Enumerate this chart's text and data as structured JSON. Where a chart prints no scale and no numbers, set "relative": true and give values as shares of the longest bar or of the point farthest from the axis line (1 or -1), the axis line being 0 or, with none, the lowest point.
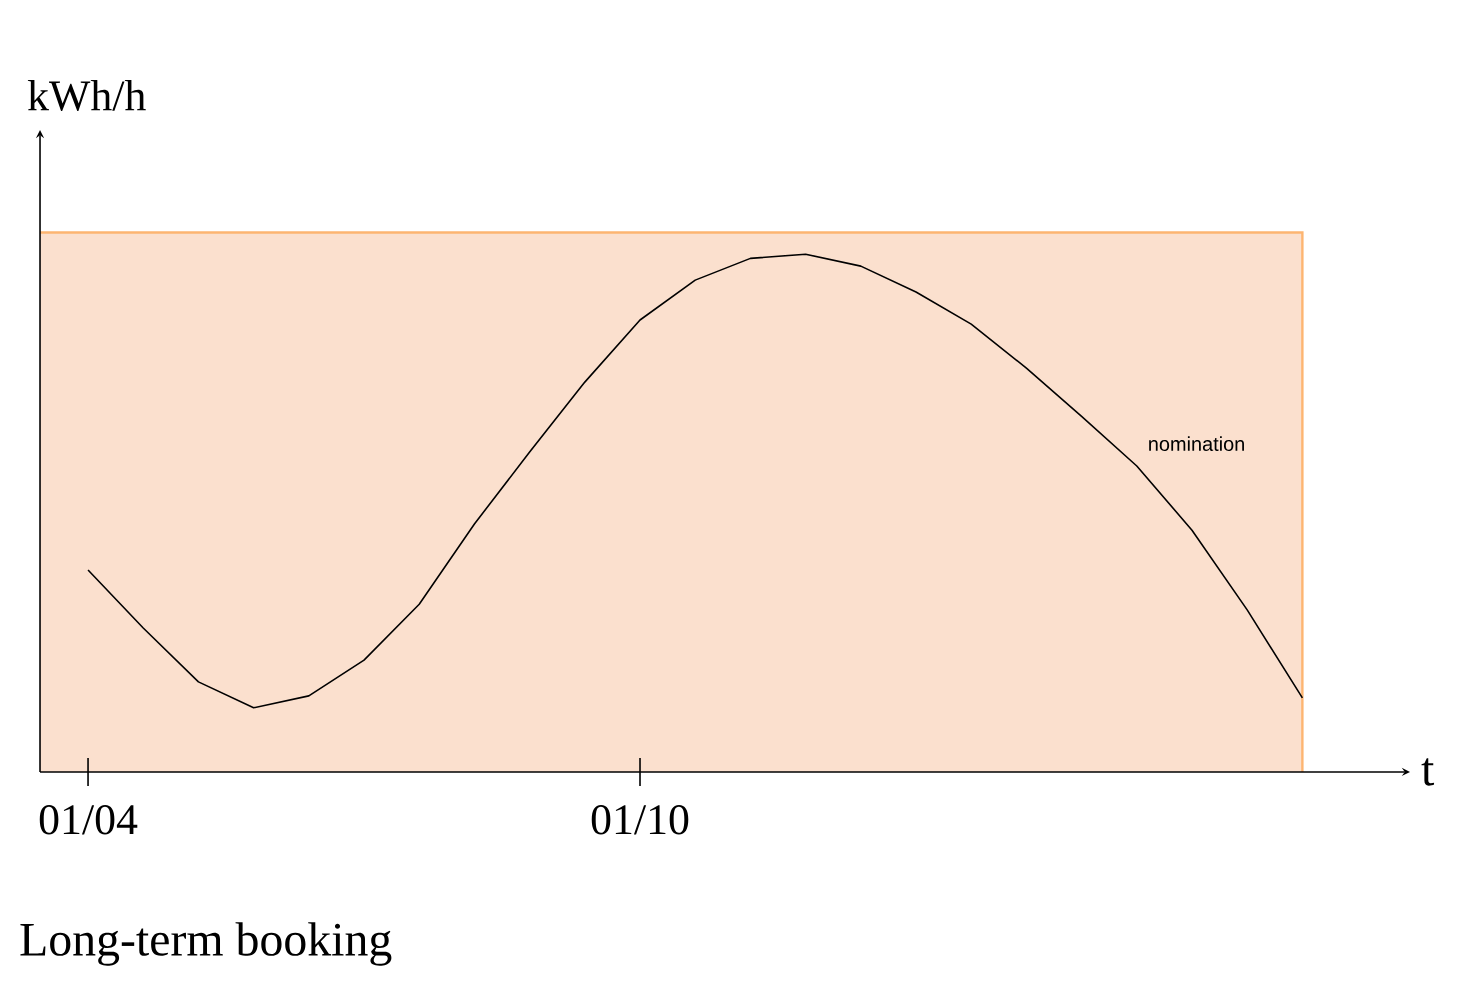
{
  "chart_data": {
    "type": "line",
    "relative": true,
    "xlabel": "t",
    "ylabel": "kWh/h",
    "categories": [
      "01/04",
      null,
      null,
      null,
      null,
      null,
      null,
      null,
      null,
      null,
      "01/10",
      null,
      null,
      null,
      null,
      null,
      null,
      null,
      null,
      null,
      null,
      null,
      null
    ],
    "annotations": [
      "Long-term booking"
    ],
    "bands": [
      {
        "axis": "y",
        "from": 0,
        "to": 1.042,
        "color": "#fbe0ce"
      }
    ],
    "series": [
      {
        "name": "nomination",
        "color": "#000000",
        "values": [
          0.39,
          0.278,
          0.174,
          0.124,
          0.147,
          0.216,
          0.324,
          0.479,
          0.618,
          0.753,
          0.873,
          0.95,
          0.992,
          1,
          0.977,
          0.927,
          0.865,
          0.78,
          0.687,
          0.591,
          0.467,
          0.313,
          0.143
        ]
      }
    ]
  }
}
